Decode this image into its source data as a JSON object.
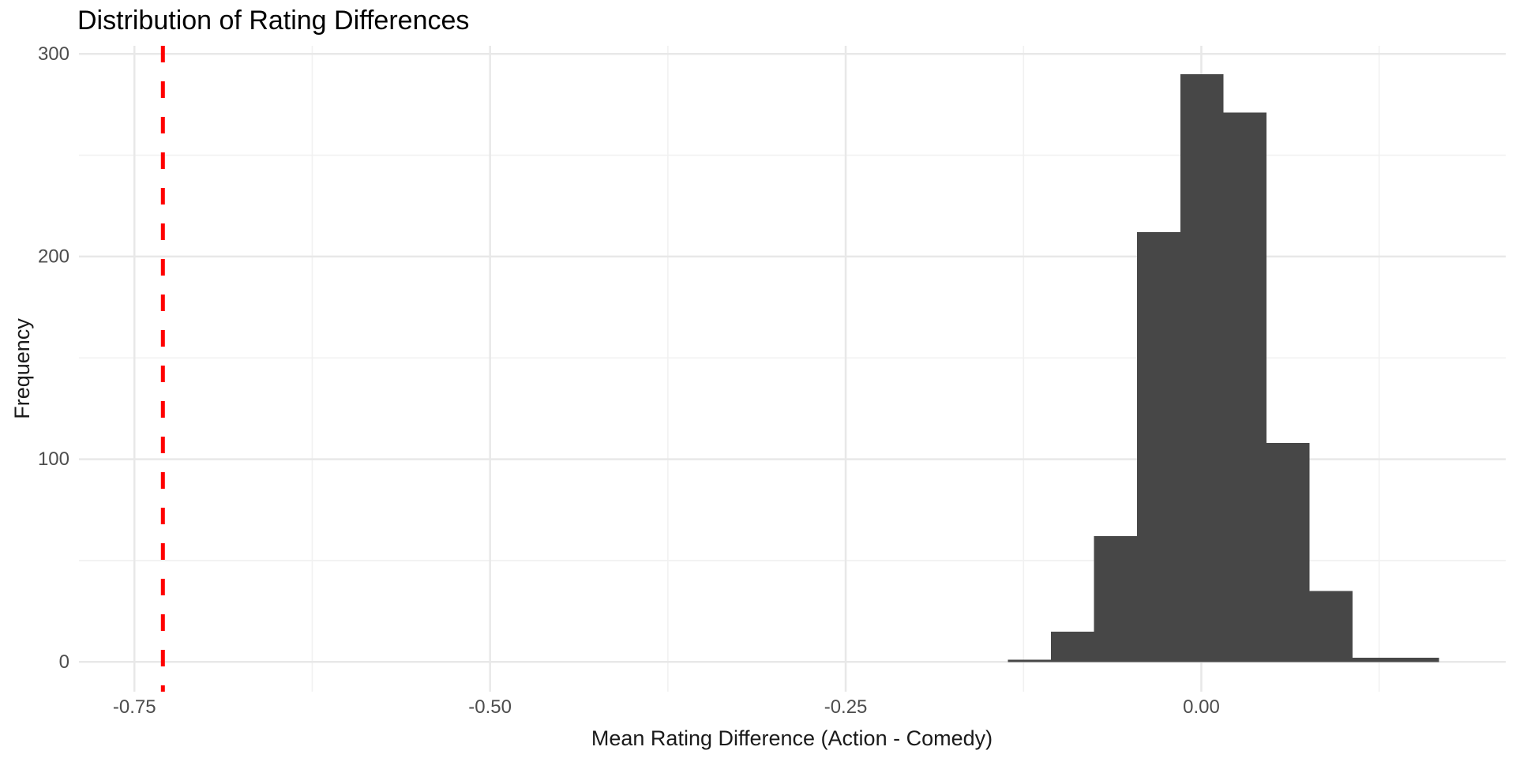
{
  "chart_data": {
    "type": "bar",
    "subtype": "histogram",
    "title": "Distribution of Rating Differences",
    "xlabel": "Mean Rating Difference (Action - Comedy)",
    "ylabel": "Frequency",
    "bin_start": -0.136,
    "bin_width": 0.0303,
    "counts": [
      1,
      15,
      62,
      212,
      290,
      271,
      108,
      35,
      2,
      2
    ],
    "x_tick_values": [
      -0.75,
      -0.5,
      -0.25,
      0
    ],
    "x_tick_labels": [
      "-0.75",
      "-0.50",
      "-0.25",
      "0.00"
    ],
    "x_minor_tick_values": [
      -0.625,
      -0.375,
      -0.125,
      0.125
    ],
    "y_tick_values": [
      0,
      100,
      200,
      300
    ],
    "y_tick_labels": [
      "0",
      "100",
      "200",
      "300"
    ],
    "y_minor_tick_values": [
      50,
      150,
      250
    ],
    "xlim": [
      -0.789,
      0.214
    ],
    "ylim": [
      -14.7,
      304
    ],
    "vline": {
      "x": -0.73,
      "color": "#FF0000",
      "style": "dashed"
    },
    "legend_position": "none",
    "grid": "major-and-minor",
    "colors": {
      "bar_fill": "#474747",
      "grid_major": "#E8E8E8",
      "grid_minor": "#F1F1F1",
      "axis_text": "#4D4D4D",
      "title_text": "#000000",
      "axis_title_text": "#1A1A1A",
      "background": "#FFFFFF"
    }
  }
}
